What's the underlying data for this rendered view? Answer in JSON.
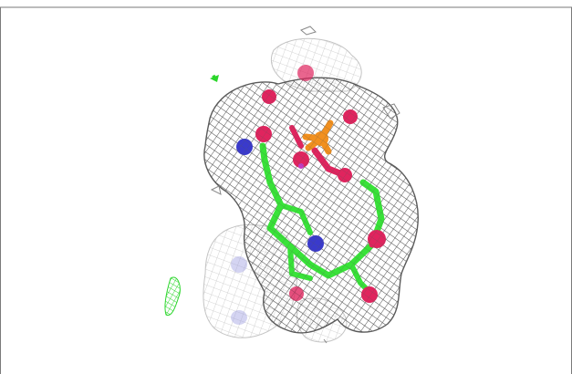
{
  "viewer": {
    "background": "#ffffff",
    "frame_color": "#7a7a7a",
    "density_mesh_color": "#6e6e6e",
    "difference_map_color": "#2bd62b",
    "ligand": {
      "carbon_color": "#38e338",
      "oxygen_color": "#e0245e",
      "nitrogen_color": "#3a3acc",
      "phosphorus_color": "#f2901e",
      "sulfur_color": "#c43cc4"
    }
  }
}
